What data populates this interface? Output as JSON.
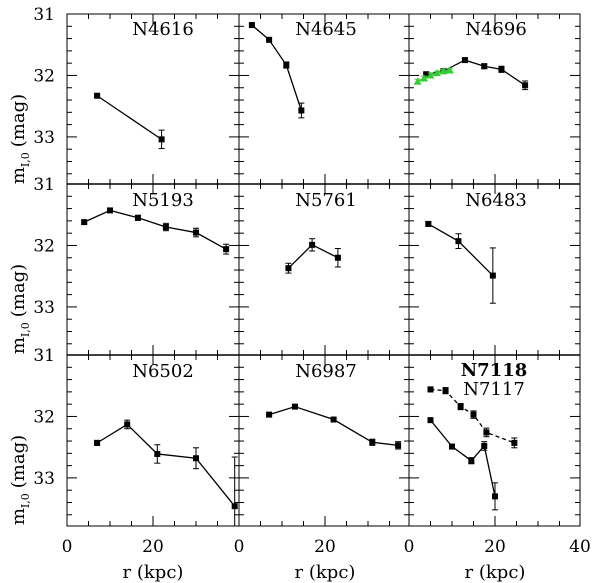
{
  "chart_data": {
    "type": "line",
    "layout": "3x3 grid of panels with shared axes",
    "xlabel": "r (kpc)",
    "ylabel_main": "m",
    "ylabel_sub": "I,0",
    "ylabel_unit": "(mag)",
    "xlim": [
      0,
      40
    ],
    "ylim": [
      33.75,
      31
    ],
    "y_inverted": true,
    "xticks": [
      "0",
      "20",
      "0",
      "20",
      "0",
      "20",
      "40"
    ],
    "yticks": [
      "31",
      "32",
      "33"
    ],
    "panels": [
      {
        "id": "N4616",
        "series": [
          {
            "name": "N4616",
            "style": "solid",
            "color": "#000000",
            "x": [
              7,
              22
            ],
            "y": [
              32.33,
              33.04
            ],
            "err": [
              0.02,
              0.15
            ]
          }
        ]
      },
      {
        "id": "N4645",
        "series": [
          {
            "name": "N4645",
            "style": "solid",
            "color": "#000000",
            "x": [
              3,
              7,
              11,
              14.5
            ],
            "y": [
              31.18,
              31.42,
              31.83,
              32.57
            ],
            "err": [
              0.02,
              0.03,
              0.05,
              0.12
            ]
          }
        ]
      },
      {
        "id": "N4696",
        "series": [
          {
            "name": "N4696",
            "style": "solid",
            "color": "#000000",
            "x": [
              4,
              8,
              13,
              17.5,
              21.5,
              27
            ],
            "y": [
              31.98,
              31.93,
              31.75,
              31.85,
              31.9,
              32.16
            ],
            "err": [
              0.03,
              0.03,
              0.03,
              0.04,
              0.05,
              0.07
            ]
          },
          {
            "name": "N4696-inner",
            "style": "solid",
            "color": "#33cc33",
            "marker": "triangle",
            "x": [
              2,
              3.5,
              5,
              6.5,
              8,
              9.5
            ],
            "y": [
              32.1,
              32.05,
              32.0,
              31.96,
              31.93,
              31.92
            ],
            "err": [
              0.04,
              0.04,
              0.04,
              0.03,
              0.03,
              0.03
            ]
          }
        ]
      },
      {
        "id": "N5193",
        "series": [
          {
            "name": "N5193",
            "style": "solid",
            "color": "#000000",
            "x": [
              4,
              10,
              16.5,
              23,
              30,
              37
            ],
            "y": [
              31.62,
              31.43,
              31.55,
              31.7,
              31.79,
              32.06
            ],
            "err": [
              0.03,
              0.02,
              0.04,
              0.06,
              0.07,
              0.08
            ]
          }
        ]
      },
      {
        "id": "N5761",
        "series": [
          {
            "name": "N5761",
            "style": "solid",
            "color": "#000000",
            "x": [
              11.5,
              17,
              23
            ],
            "y": [
              32.37,
              31.99,
              32.2
            ],
            "err": [
              0.08,
              0.1,
              0.15
            ]
          }
        ]
      },
      {
        "id": "N6483",
        "series": [
          {
            "name": "N6483",
            "style": "solid",
            "color": "#000000",
            "x": [
              4.5,
              11.5,
              19.5
            ],
            "y": [
              31.65,
              31.93,
              32.49
            ],
            "err": [
              0.04,
              0.12,
              0.45
            ]
          }
        ]
      },
      {
        "id": "N6502",
        "series": [
          {
            "name": "N6502",
            "style": "solid",
            "color": "#000000",
            "x": [
              7,
              14,
              21,
              30,
              39
            ],
            "y": [
              32.43,
              32.13,
              32.61,
              32.68,
              33.46
            ],
            "err": [
              0.04,
              0.07,
              0.15,
              0.17,
              0.8
            ]
          }
        ]
      },
      {
        "id": "N6987",
        "series": [
          {
            "name": "N6987",
            "style": "solid",
            "color": "#000000",
            "x": [
              7,
              13,
              22,
              31,
              37
            ],
            "y": [
              31.97,
              31.84,
              32.05,
              32.42,
              32.47
            ],
            "err": [
              0.02,
              0.02,
              0.03,
              0.05,
              0.06
            ]
          }
        ]
      },
      {
        "id": "N7118/N7117",
        "series": [
          {
            "name": "N7118",
            "style": "solid",
            "color": "#000000",
            "x": [
              5,
              10,
              14.5,
              17.5,
              20
            ],
            "y": [
              32.06,
              32.49,
              32.72,
              32.48,
              33.3
            ],
            "err": [
              0.03,
              0.03,
              0.05,
              0.07,
              0.22
            ]
          },
          {
            "name": "N7117",
            "style": "dashed",
            "color": "#000000",
            "x": [
              5,
              8.5,
              12,
              15,
              18,
              24.5
            ],
            "y": [
              31.56,
              31.58,
              31.84,
              31.97,
              32.26,
              32.43
            ],
            "err": [
              0.04,
              0.05,
              0.05,
              0.06,
              0.07,
              0.08
            ]
          }
        ]
      }
    ]
  },
  "panel_labels": {
    "p0": "N4616",
    "p1": "N4645",
    "p2": "N4696",
    "p3": "N5193",
    "p4": "N5761",
    "p5": "N6483",
    "p6": "N6502",
    "p7": "N6987",
    "p8a": "N7118",
    "p8b": "N7117"
  }
}
